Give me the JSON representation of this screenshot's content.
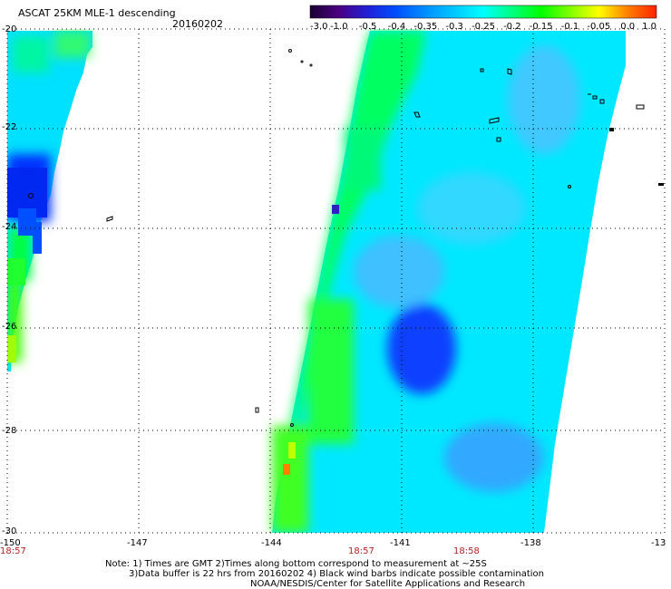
{
  "header": {
    "title": "ASCAT 25KM MLE-1 descending",
    "date": "20160202"
  },
  "colorbar": {
    "labels": [
      "-3.0",
      "-1.0",
      "-0.5",
      "-0.4",
      "-0.35",
      "-0.3",
      "-0.25",
      "-0.2",
      "-0.15",
      "-0.1",
      "-0.05",
      "0.0",
      "1.0"
    ],
    "colors": [
      "#1a0033",
      "#4b0082",
      "#2020d8",
      "#0050ff",
      "#0090ff",
      "#00c8ff",
      "#00ffff",
      "#00ff80",
      "#00ff00",
      "#80ff00",
      "#ffff00",
      "#ff8000",
      "#ff2000"
    ]
  },
  "axes": {
    "x_ticks": [
      "-150",
      "-147",
      "-144",
      "-141",
      "-138",
      "-13"
    ],
    "y_ticks": [
      "-20",
      "-22",
      "-24",
      "-26",
      "-28",
      "-30"
    ]
  },
  "times": [
    "18:57",
    "18:57",
    "18:58"
  ],
  "notes": [
    "Note: 1) Times are GMT 2)Times along bottom correspond to measurement at ~25S",
    "3)Data buffer is 22 hrs from 20160202 4) Black wind barbs indicate possible contamination",
    "NOAA/NESDIS/Center for Satellite Applications and Research"
  ]
}
